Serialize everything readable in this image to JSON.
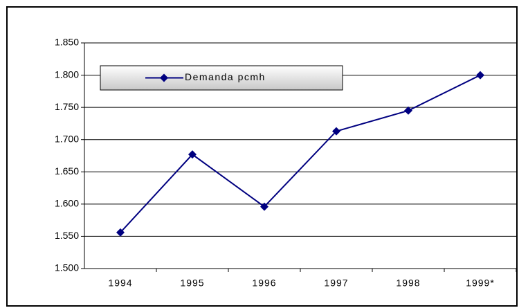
{
  "chart_data": {
    "type": "line",
    "categories": [
      "1994",
      "1995",
      "1996",
      "1997",
      "1998",
      "1999*"
    ],
    "series": [
      {
        "name": "Demanda pcmh",
        "color": "#000080",
        "values": [
          1556,
          1677,
          1596,
          1713,
          1745,
          1800
        ]
      }
    ],
    "ylim": [
      1500,
      1850
    ],
    "yticks": [
      {
        "value": 1500,
        "label": "1.500"
      },
      {
        "value": 1550,
        "label": "1.550"
      },
      {
        "value": 1600,
        "label": "1.600"
      },
      {
        "value": 1650,
        "label": "1.650"
      },
      {
        "value": 1700,
        "label": "1.700"
      },
      {
        "value": 1750,
        "label": "1.750"
      },
      {
        "value": 1800,
        "label": "1.800"
      },
      {
        "value": 1850,
        "label": "1.850"
      }
    ],
    "grid": true,
    "legend": "top-left"
  }
}
